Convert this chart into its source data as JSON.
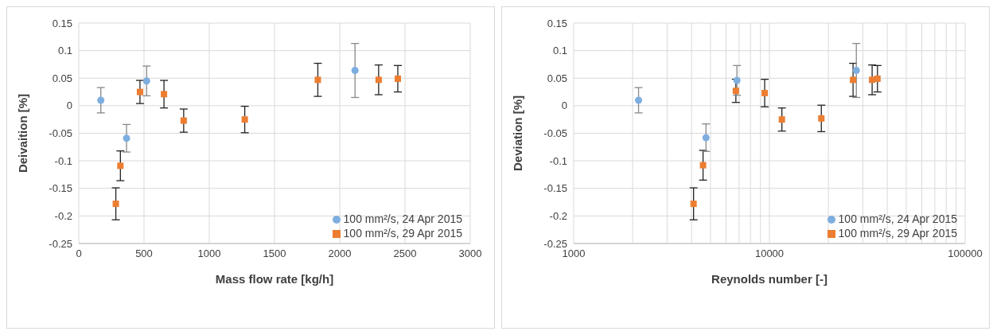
{
  "chart_data": [
    {
      "type": "scatter",
      "xlabel": "Mass flow rate [kg/h]",
      "ylabel": "Deivaition [%]",
      "xlim": [
        0,
        3000
      ],
      "xticks": [
        0,
        500,
        1000,
        1500,
        2000,
        2500,
        3000
      ],
      "ylim": [
        -0.25,
        0.15
      ],
      "yticks": [
        -0.25,
        -0.2,
        -0.15,
        -0.1,
        -0.05,
        0,
        0.05,
        0.1,
        0.15
      ],
      "grid": true,
      "legend": "bottom right",
      "series": [
        {
          "name": "100 mm²/s, 29 Apr 2015",
          "color": "#ed7d31",
          "marker": "square",
          "x": [
            284,
            319,
            469,
            653,
            804,
            1272,
            1832,
            2298,
            2445
          ],
          "values": [
            -0.178,
            -0.109,
            0.025,
            0.021,
            -0.027,
            -0.025,
            0.047,
            0.047,
            0.049
          ],
          "errors": [
            0.029,
            0.027,
            0.021,
            0.025,
            0.021,
            0.024,
            0.03,
            0.027,
            0.024
          ]
        },
        {
          "name": "100 mm²/s, 24 Apr 2015",
          "color": "#7eaee0",
          "marker": "circle",
          "x": [
            169,
            366,
            520,
            2117
          ],
          "values": [
            0.01,
            -0.059,
            0.045,
            0.064
          ],
          "errors": [
            0.023,
            0.025,
            0.027,
            0.049
          ]
        }
      ]
    },
    {
      "type": "scatter",
      "xlabel": "Reynolds number [-]",
      "ylabel": "Deviation [%]",
      "log": "x",
      "xlim": [
        1000,
        100000
      ],
      "xticks": [
        1000,
        {
          "value": 2000,
          "label": null
        },
        {
          "value": 3000,
          "label": null
        },
        {
          "value": 4000,
          "label": null
        },
        {
          "value": 5000,
          "label": null
        },
        {
          "value": 6000,
          "label": null
        },
        {
          "value": 7000,
          "label": null
        },
        {
          "value": 8000,
          "label": null
        },
        {
          "value": 9000,
          "label": null
        },
        10000,
        {
          "value": 20000,
          "label": null
        },
        {
          "value": 30000,
          "label": null
        },
        {
          "value": 40000,
          "label": null
        },
        {
          "value": 50000,
          "label": null
        },
        {
          "value": 60000,
          "label": null
        },
        {
          "value": 70000,
          "label": null
        },
        {
          "value": 80000,
          "label": null
        },
        {
          "value": 90000,
          "label": null
        },
        100000
      ],
      "ylim": [
        -0.25,
        0.15
      ],
      "yticks": [
        -0.25,
        -0.2,
        -0.15,
        -0.1,
        -0.05,
        0,
        0.05,
        0.1,
        0.15
      ],
      "grid": true,
      "legend": "bottom right",
      "series": [
        {
          "name": "100 mm²/s, 29 Apr 2015",
          "color": "#ed7d31",
          "marker": "square",
          "x": [
            4097,
            4581,
            6740,
            9459,
            11580,
            18420,
            26750,
            33480,
            35640
          ],
          "values": [
            -0.178,
            -0.108,
            0.027,
            0.023,
            -0.025,
            -0.023,
            0.047,
            0.047,
            0.049
          ],
          "errors": [
            0.029,
            0.027,
            0.021,
            0.025,
            0.021,
            0.024,
            0.03,
            0.027,
            0.024
          ]
        },
        {
          "name": "100 mm²/s, 24 Apr 2015",
          "color": "#7eaee0",
          "marker": "circle",
          "x": [
            2145,
            4743,
            6825,
            27800
          ],
          "values": [
            0.01,
            -0.058,
            0.046,
            0.064
          ],
          "errors": [
            0.023,
            0.025,
            0.027,
            0.049
          ]
        }
      ]
    }
  ]
}
